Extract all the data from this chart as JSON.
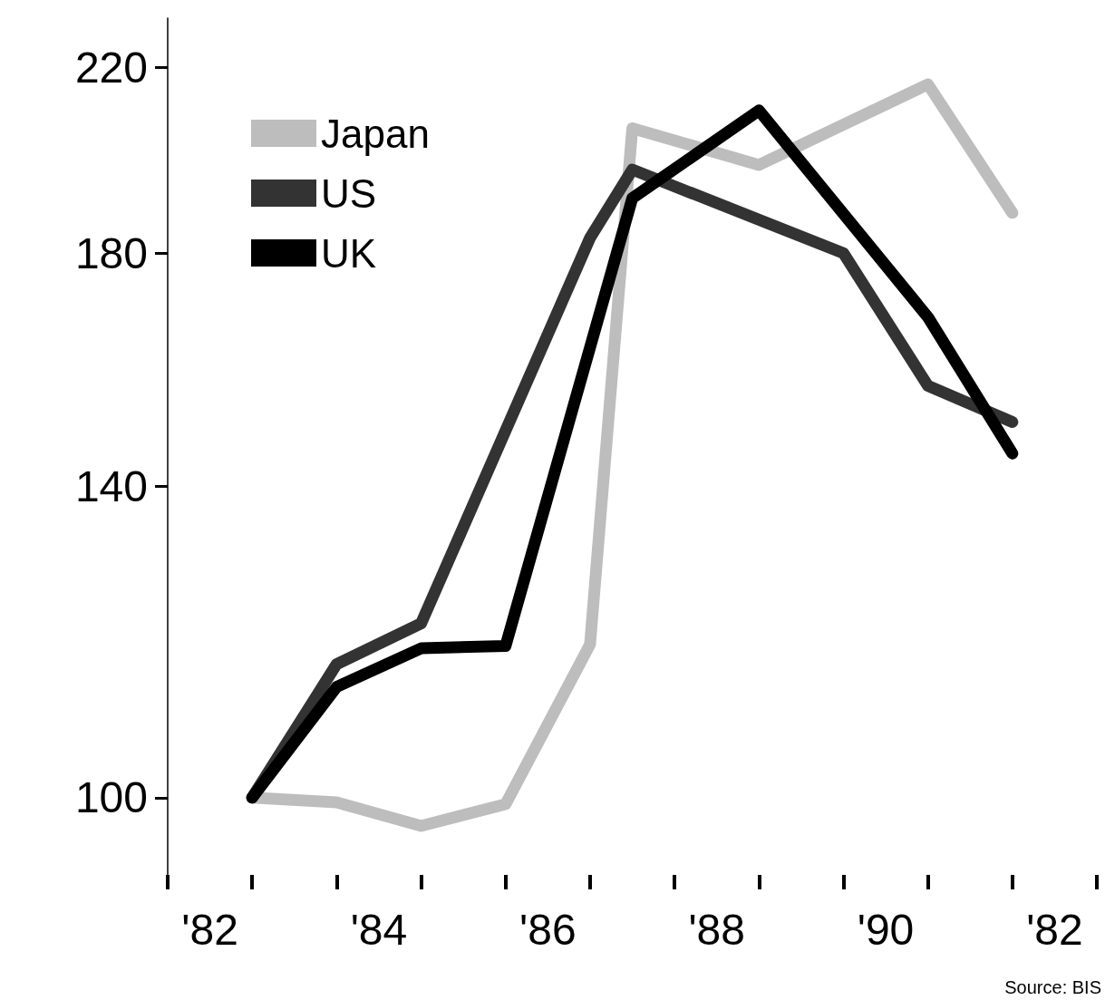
{
  "chart_data": {
    "type": "line",
    "log": "y",
    "grid": false,
    "legend": "top left",
    "marker": "none",
    "line_style": "solid",
    "categories": [
      null,
      "'82",
      null,
      null,
      null,
      "'84",
      null,
      null,
      null,
      "'86",
      null,
      null,
      null,
      "'88",
      null,
      null,
      null,
      "'90",
      null,
      null,
      null,
      "'82",
      null
    ],
    "ylim": [
      92,
      232
    ],
    "yticks": [
      100,
      140,
      180,
      220
    ],
    "series": [
      {
        "name": "Japan",
        "color": "#bdbdbd",
        "values": [
          null,
          null,
          100,
          null,
          99.5,
          null,
          97,
          null,
          99.3,
          null,
          118,
          206,
          null,
          null,
          198,
          null,
          null,
          null,
          216,
          null,
          188,
          null,
          null
        ]
      },
      {
        "name": "US",
        "color": "#333333",
        "values": [
          null,
          null,
          100,
          null,
          115.5,
          null,
          120.7,
          null,
          null,
          null,
          183,
          197,
          null,
          null,
          null,
          null,
          180,
          null,
          156,
          null,
          150,
          null,
          null
        ]
      },
      {
        "name": "UK",
        "color": "#000000",
        "values": [
          null,
          null,
          100,
          null,
          112.7,
          null,
          117.5,
          null,
          117.8,
          null,
          null,
          191,
          null,
          null,
          210,
          null,
          null,
          null,
          168,
          null,
          145,
          null,
          null
        ]
      }
    ],
    "annotations": [
      "Source: BIS"
    ]
  }
}
